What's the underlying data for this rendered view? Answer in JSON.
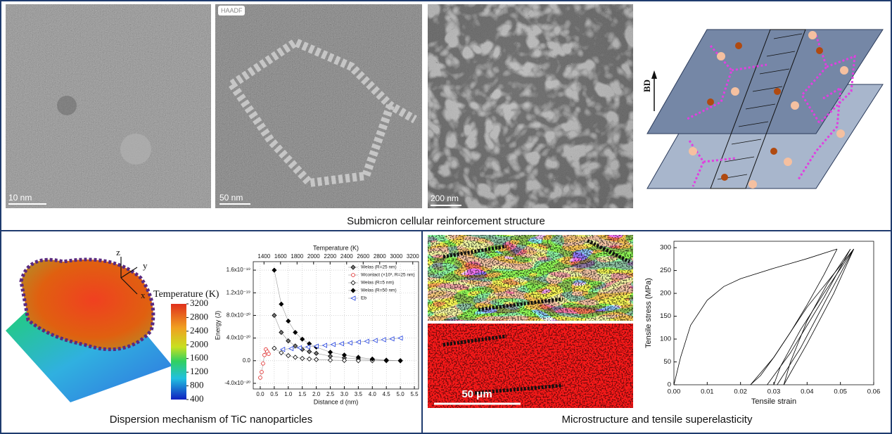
{
  "panels": {
    "top": {
      "caption": "Submicron cellular reinforcement structure",
      "images": [
        {
          "scale_bar": "10 nm"
        },
        {
          "label": "HAADF",
          "scale_bar": "50 nm"
        },
        {
          "scale_bar": "200 nm"
        }
      ],
      "diagram": {
        "axis_label": "BD"
      }
    },
    "bottom_left": {
      "caption": "Dispersion mechanism of TiC nanoparticles",
      "model": {
        "axes": [
          "z",
          "y",
          "x"
        ],
        "colorbar": {
          "title": "Temperature (K)",
          "lim": [
            400,
            3200
          ],
          "ticks": [
            3200,
            2800,
            2400,
            2000,
            1600,
            1200,
            800,
            400
          ]
        }
      },
      "chart": {
        "type": "line",
        "xlabel": "Distance d (nm)",
        "x2label": "Temperature (K)",
        "ylabel": "Energy (J)",
        "xlim": [
          -0.25,
          5.65
        ],
        "xticks": [
          {
            "value": 0,
            "label": "0.0"
          },
          0.5,
          {
            "value": 1,
            "label": "1.0"
          },
          1.5,
          {
            "value": 2,
            "label": "2.0"
          },
          2.5,
          {
            "value": 3,
            "label": "3.0"
          },
          3.5,
          {
            "value": 4,
            "label": "4.0"
          },
          4.5,
          {
            "value": 5,
            "label": "5.0"
          },
          5.5
        ],
        "x2lim": [
          1270,
          3270
        ],
        "x2ticks": [
          1400,
          1600,
          1800,
          2000,
          2200,
          2400,
          2600,
          2800,
          3000,
          3200
        ],
        "ylim": [
          -5e-20,
          1.75e-19
        ],
        "yticks": [
          {
            "value": -4e-20,
            "label": "-4.0x10⁻²⁰"
          },
          {
            "value": 0,
            "label": "0.0"
          },
          {
            "value": 4e-20,
            "label": "4.0x10⁻²⁰"
          },
          {
            "value": 8e-20,
            "label": "8.0x10⁻²⁰"
          },
          {
            "value": 1.2e-19,
            "label": "1.2x10⁻¹⁹"
          },
          {
            "value": 1.6e-19,
            "label": "1.6x10⁻¹⁹"
          }
        ],
        "grid": true,
        "legend": "upper right",
        "series": [
          {
            "name": "Welas (R=25 nm)",
            "color": "#000000",
            "marker": "diamond-half",
            "x": [
              0.5,
              0.75,
              1.0,
              1.25,
              1.5,
              1.75,
              2.0,
              2.5,
              3.0,
              3.5,
              4.0,
              4.5,
              5.0
            ],
            "values": [
              8e-20,
              5e-20,
              3.5e-20,
              2.6e-20,
              2e-20,
              1.6e-20,
              1.3e-20,
              8e-21,
              5e-21,
              3e-21,
              1.5e-21,
              5e-22,
              0
            ]
          },
          {
            "name": "Wcontact (×10³, R=25 nm)",
            "color": "#e02020",
            "marker": "circle-open",
            "x": [
              0.0,
              0.05,
              0.1,
              0.15,
              0.2,
              0.25,
              0.3
            ],
            "values": [
              -3e-20,
              -2e-20,
              -5e-21,
              1e-20,
              2e-20,
              1.6e-20,
              1.2e-20
            ]
          },
          {
            "name": "Welas (R=5 nm)",
            "color": "#000000",
            "marker": "diamond-open",
            "x": [
              0.5,
              0.75,
              1.0,
              1.25,
              1.5,
              1.75,
              2.0,
              2.5,
              3.0,
              3.5,
              4.0,
              4.5,
              5.0
            ],
            "values": [
              2.2e-20,
              1.4e-20,
              9e-21,
              6e-21,
              4e-21,
              3e-21,
              2e-21,
              1e-21,
              5e-22,
              0,
              0,
              0,
              0
            ]
          },
          {
            "name": "Welas (R=50 nm)",
            "color": "#000000",
            "marker": "diamond-filled",
            "x": [
              0.5,
              0.75,
              1.0,
              1.25,
              1.5,
              1.75,
              2.0,
              2.5,
              3.0,
              3.5,
              4.0,
              4.5,
              5.0
            ],
            "values": [
              1.6e-19,
              1e-19,
              7e-20,
              5e-20,
              3.8e-20,
              3e-20,
              2.4e-20,
              1.5e-20,
              1e-20,
              6e-21,
              3e-21,
              1e-21,
              0
            ]
          },
          {
            "name": "Eb",
            "color": "#2040e0",
            "marker": "triangle-open",
            "x": [
              0.8,
              1.1,
              1.4,
              1.7,
              2.0,
              2.3,
              2.6,
              2.9,
              3.2,
              3.5,
              3.8,
              4.1,
              4.4,
              4.7,
              5.0
            ],
            "values": [
              2e-20,
              2.14e-20,
              2.29e-20,
              2.43e-20,
              2.57e-20,
              2.71e-20,
              2.86e-20,
              3e-20,
              3.14e-20,
              3.29e-20,
              3.43e-20,
              3.57e-20,
              3.71e-20,
              3.86e-20,
              4e-20
            ]
          }
        ]
      }
    },
    "bottom_right": {
      "caption": "Microstructure and tensile superelasticity",
      "ebsd": {
        "scale_bar": "50 μm"
      },
      "chart": {
        "type": "line",
        "xlabel": "Tensile strain",
        "ylabel": "Tensile stress (MPa)",
        "xlim": [
          0,
          0.06
        ],
        "xticks": [
          {
            "value": 0,
            "label": "0.00"
          },
          0.01,
          0.02,
          0.03,
          0.04,
          0.05,
          0.06
        ],
        "ylim": [
          0,
          314
        ],
        "yticks": [
          0,
          50,
          100,
          150,
          200,
          250,
          300
        ],
        "grid": false,
        "series": [
          {
            "color": "#000000",
            "x": [
              0,
              0.002,
              0.005,
              0.01,
              0.015,
              0.02,
              0.03,
              0.04,
              0.049
            ],
            "values": [
              0,
              60,
              130,
              185,
              215,
              232,
              255,
              276,
              297
            ]
          },
          {
            "color": "#000000",
            "x": [
              0.049,
              0.045,
              0.04,
              0.035,
              0.03,
              0.026,
              0.023
            ],
            "values": [
              297,
              240,
              175,
              115,
              60,
              20,
              0
            ]
          },
          {
            "color": "#000000",
            "x": [
              0.023,
              0.03,
              0.04,
              0.054
            ],
            "values": [
              0,
              60,
              170,
              297
            ]
          },
          {
            "color": "#000000",
            "x": [
              0.054,
              0.045,
              0.038,
              0.032,
              0.03
            ],
            "values": [
              297,
              200,
              120,
              40,
              0
            ]
          },
          {
            "color": "#000000",
            "x": [
              0.028,
              0.035,
              0.045,
              0.053
            ],
            "values": [
              0,
              70,
              190,
              297
            ]
          },
          {
            "color": "#000000",
            "x": [
              0.053,
              0.046,
              0.04,
              0.035,
              0.033
            ],
            "values": [
              297,
              220,
              140,
              50,
              0
            ]
          },
          {
            "color": "#000000",
            "x": [
              0.031,
              0.038,
              0.046,
              0.054
            ],
            "values": [
              0,
              80,
              190,
              297
            ]
          },
          {
            "color": "#000000",
            "x": [
              0.033,
              0.04,
              0.048,
              0.054
            ],
            "values": [
              0,
              90,
              200,
              297
            ]
          }
        ]
      }
    }
  }
}
